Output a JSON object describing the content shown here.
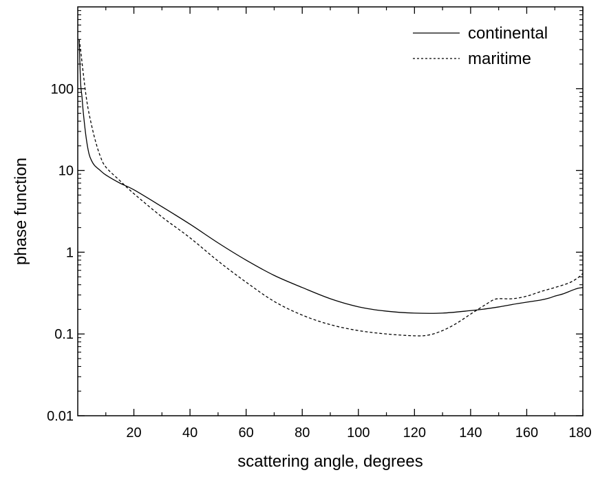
{
  "chart_data": {
    "type": "line",
    "title": "",
    "xlabel": "scattering angle, degrees",
    "ylabel": "phase function",
    "xlim": [
      0,
      180
    ],
    "ylim": [
      0.01,
      1000
    ],
    "yscale": "log",
    "grid": false,
    "legend_position": "top-right",
    "x_ticks": [
      20,
      40,
      60,
      80,
      100,
      120,
      140,
      160,
      180
    ],
    "x_tick_labels": [
      "20",
      "40",
      "60",
      "80",
      "100",
      "120",
      "140",
      "160",
      "180"
    ],
    "y_ticks": [
      0.01,
      0.1,
      1,
      10,
      100
    ],
    "y_tick_labels": [
      "0.01",
      "0.1",
      "1",
      "10",
      "100"
    ],
    "series": [
      {
        "name": "continental",
        "style": "solid",
        "x": [
          0.5,
          1,
          1.5,
          2,
          3,
          4,
          5,
          6,
          8,
          10,
          15,
          20,
          30,
          40,
          50,
          60,
          70,
          80,
          90,
          100,
          110,
          120,
          130,
          140,
          145,
          150,
          155,
          160,
          165,
          168,
          170,
          173,
          176,
          178,
          180
        ],
        "y": [
          400,
          120,
          80,
          50,
          25,
          16,
          13,
          11.5,
          10,
          8.8,
          7,
          5.8,
          3.6,
          2.2,
          1.3,
          0.8,
          0.52,
          0.37,
          0.27,
          0.215,
          0.19,
          0.18,
          0.18,
          0.193,
          0.202,
          0.214,
          0.23,
          0.245,
          0.26,
          0.275,
          0.29,
          0.31,
          0.34,
          0.36,
          0.37
        ]
      },
      {
        "name": "maritime",
        "style": "dashed",
        "x": [
          0.5,
          1,
          2,
          3,
          4,
          6,
          8,
          10,
          15,
          20,
          30,
          40,
          50,
          60,
          70,
          80,
          90,
          100,
          110,
          120,
          125,
          130,
          135,
          140,
          145,
          148,
          150,
          155,
          160,
          165,
          170,
          175,
          178,
          180
        ],
        "y": [
          400,
          300,
          150,
          80,
          50,
          25,
          15,
          11,
          7.5,
          5.2,
          2.7,
          1.5,
          0.78,
          0.43,
          0.25,
          0.17,
          0.13,
          0.11,
          0.1,
          0.095,
          0.097,
          0.11,
          0.135,
          0.175,
          0.225,
          0.26,
          0.27,
          0.27,
          0.29,
          0.33,
          0.37,
          0.42,
          0.48,
          0.55
        ]
      }
    ]
  }
}
